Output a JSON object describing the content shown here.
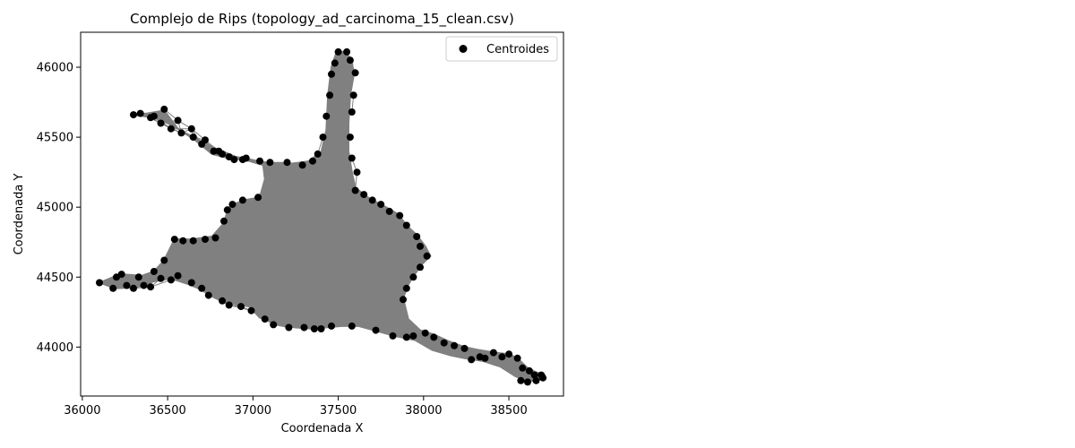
{
  "chart_data": {
    "type": "scatter",
    "title": "Complejo de Rips (topology_ad_carcinoma_15_clean.csv)",
    "xlabel": "Coordenada X",
    "ylabel": "Coordenada Y",
    "xlim": [
      35990,
      38820
    ],
    "ylim": [
      43650,
      46250
    ],
    "xticks": [
      36000,
      36500,
      37000,
      37500,
      38000,
      38500
    ],
    "yticks": [
      44000,
      44500,
      45000,
      45500,
      46000
    ],
    "legend": {
      "position": "upper-right",
      "entries": [
        "Centroides"
      ]
    },
    "point_color": "#000000",
    "edge_color": "#808080",
    "series": [
      {
        "name": "Centroides",
        "outline": [
          [
            36100,
            44460
          ],
          [
            36180,
            44500
          ],
          [
            36230,
            44520
          ],
          [
            36350,
            44510
          ],
          [
            36420,
            44540
          ],
          [
            36480,
            44620
          ],
          [
            36540,
            44770
          ],
          [
            36640,
            44770
          ],
          [
            36760,
            44790
          ],
          [
            36840,
            44900
          ],
          [
            36860,
            45000
          ],
          [
            36950,
            45050
          ],
          [
            37040,
            45070
          ],
          [
            37070,
            45200
          ],
          [
            37060,
            45300
          ],
          [
            36950,
            45340
          ],
          [
            36860,
            45350
          ],
          [
            36760,
            45380
          ],
          [
            36660,
            45480
          ],
          [
            36560,
            45560
          ],
          [
            36480,
            45690
          ],
          [
            36380,
            45670
          ],
          [
            36300,
            45660
          ],
          [
            36420,
            45640
          ],
          [
            36500,
            45600
          ],
          [
            36620,
            45520
          ],
          [
            36780,
            45420
          ],
          [
            36900,
            45360
          ],
          [
            37050,
            45320
          ],
          [
            37220,
            45310
          ],
          [
            37340,
            45330
          ],
          [
            37400,
            45390
          ],
          [
            37430,
            45550
          ],
          [
            37440,
            45800
          ],
          [
            37460,
            46000
          ],
          [
            37490,
            46110
          ],
          [
            37540,
            46110
          ],
          [
            37580,
            46050
          ],
          [
            37590,
            45940
          ],
          [
            37570,
            45800
          ],
          [
            37560,
            45600
          ],
          [
            37560,
            45400
          ],
          [
            37580,
            45250
          ],
          [
            37600,
            45140
          ],
          [
            37680,
            45060
          ],
          [
            37780,
            45000
          ],
          [
            37850,
            44950
          ],
          [
            37900,
            44870
          ],
          [
            37960,
            44800
          ],
          [
            38010,
            44720
          ],
          [
            38040,
            44650
          ],
          [
            37980,
            44580
          ],
          [
            37920,
            44480
          ],
          [
            37880,
            44350
          ],
          [
            37910,
            44200
          ],
          [
            37980,
            44120
          ],
          [
            38060,
            44090
          ],
          [
            38150,
            44040
          ],
          [
            38240,
            44000
          ],
          [
            38320,
            43980
          ],
          [
            38420,
            43960
          ],
          [
            38500,
            43950
          ],
          [
            38550,
            43920
          ],
          [
            38610,
            43850
          ],
          [
            38660,
            43820
          ],
          [
            38710,
            43800
          ],
          [
            38700,
            43770
          ],
          [
            38640,
            43760
          ],
          [
            38600,
            43760
          ],
          [
            38540,
            43790
          ],
          [
            38450,
            43860
          ],
          [
            38350,
            43900
          ],
          [
            38240,
            43920
          ],
          [
            38160,
            43940
          ],
          [
            38050,
            43980
          ],
          [
            37950,
            44050
          ],
          [
            37830,
            44080
          ],
          [
            37740,
            44110
          ],
          [
            37620,
            44150
          ],
          [
            37520,
            44150
          ],
          [
            37420,
            44140
          ],
          [
            37360,
            44130
          ],
          [
            37250,
            44140
          ],
          [
            37150,
            44160
          ],
          [
            37040,
            44210
          ],
          [
            36980,
            44290
          ],
          [
            36880,
            44310
          ],
          [
            36790,
            44350
          ],
          [
            36720,
            44400
          ],
          [
            36620,
            44450
          ],
          [
            36520,
            44490
          ],
          [
            36420,
            44470
          ],
          [
            36320,
            44430
          ],
          [
            36200,
            44420
          ],
          [
            36100,
            44460
          ]
        ],
        "points": [
          [
            36100,
            44460
          ],
          [
            36180,
            44420
          ],
          [
            36200,
            44500
          ],
          [
            36230,
            44520
          ],
          [
            36260,
            44440
          ],
          [
            36330,
            44500
          ],
          [
            36360,
            44440
          ],
          [
            36420,
            44540
          ],
          [
            36480,
            44620
          ],
          [
            36540,
            44770
          ],
          [
            36590,
            44760
          ],
          [
            36650,
            44760
          ],
          [
            36720,
            44770
          ],
          [
            36780,
            44780
          ],
          [
            36830,
            44900
          ],
          [
            36850,
            44980
          ],
          [
            36880,
            45020
          ],
          [
            36940,
            45050
          ],
          [
            37030,
            45070
          ],
          [
            36640,
            44460
          ],
          [
            36700,
            44420
          ],
          [
            36740,
            44370
          ],
          [
            36820,
            44330
          ],
          [
            36860,
            44300
          ],
          [
            36930,
            44290
          ],
          [
            36990,
            44260
          ],
          [
            37070,
            44200
          ],
          [
            37120,
            44160
          ],
          [
            37210,
            44140
          ],
          [
            37300,
            44140
          ],
          [
            37360,
            44130
          ],
          [
            37400,
            44130
          ],
          [
            37460,
            44150
          ],
          [
            37580,
            44150
          ],
          [
            37720,
            44120
          ],
          [
            37820,
            44080
          ],
          [
            37900,
            44070
          ],
          [
            37940,
            44080
          ],
          [
            38010,
            44100
          ],
          [
            38060,
            44070
          ],
          [
            38120,
            44030
          ],
          [
            38180,
            44010
          ],
          [
            38240,
            43990
          ],
          [
            38280,
            43910
          ],
          [
            38330,
            43930
          ],
          [
            38360,
            43920
          ],
          [
            38410,
            43960
          ],
          [
            38460,
            43930
          ],
          [
            38500,
            43950
          ],
          [
            38550,
            43920
          ],
          [
            38580,
            43850
          ],
          [
            38620,
            43830
          ],
          [
            38650,
            43800
          ],
          [
            38690,
            43800
          ],
          [
            38700,
            43780
          ],
          [
            38660,
            43760
          ],
          [
            38610,
            43750
          ],
          [
            38570,
            43760
          ],
          [
            37880,
            44340
          ],
          [
            37900,
            44420
          ],
          [
            37940,
            44500
          ],
          [
            37980,
            44570
          ],
          [
            38020,
            44650
          ],
          [
            37980,
            44720
          ],
          [
            37960,
            44790
          ],
          [
            37900,
            44870
          ],
          [
            37860,
            44940
          ],
          [
            37800,
            44970
          ],
          [
            37750,
            45020
          ],
          [
            37700,
            45050
          ],
          [
            37650,
            45090
          ],
          [
            37600,
            45120
          ],
          [
            37610,
            45250
          ],
          [
            37580,
            45350
          ],
          [
            37570,
            45500
          ],
          [
            37580,
            45680
          ],
          [
            37590,
            45800
          ],
          [
            37600,
            45960
          ],
          [
            37570,
            46050
          ],
          [
            37550,
            46110
          ],
          [
            37500,
            46110
          ],
          [
            37480,
            46030
          ],
          [
            37460,
            45950
          ],
          [
            37450,
            45800
          ],
          [
            37430,
            45650
          ],
          [
            37410,
            45500
          ],
          [
            37380,
            45380
          ],
          [
            37350,
            45330
          ],
          [
            37290,
            45300
          ],
          [
            37200,
            45320
          ],
          [
            37100,
            45320
          ],
          [
            37040,
            45330
          ],
          [
            36960,
            45350
          ],
          [
            36890,
            45340
          ],
          [
            36820,
            45380
          ],
          [
            36770,
            45400
          ],
          [
            36700,
            45450
          ],
          [
            36650,
            45500
          ],
          [
            36580,
            45530
          ],
          [
            36520,
            45560
          ],
          [
            36460,
            45600
          ],
          [
            36400,
            45640
          ],
          [
            36300,
            45660
          ],
          [
            36340,
            45670
          ],
          [
            36420,
            45650
          ],
          [
            36480,
            45700
          ],
          [
            36560,
            45620
          ],
          [
            36640,
            45560
          ],
          [
            36720,
            45480
          ],
          [
            36800,
            45400
          ],
          [
            36860,
            45360
          ],
          [
            36940,
            45340
          ],
          [
            36560,
            44510
          ],
          [
            36520,
            44480
          ],
          [
            36460,
            44490
          ],
          [
            36400,
            44430
          ],
          [
            36300,
            44420
          ]
        ]
      }
    ]
  }
}
